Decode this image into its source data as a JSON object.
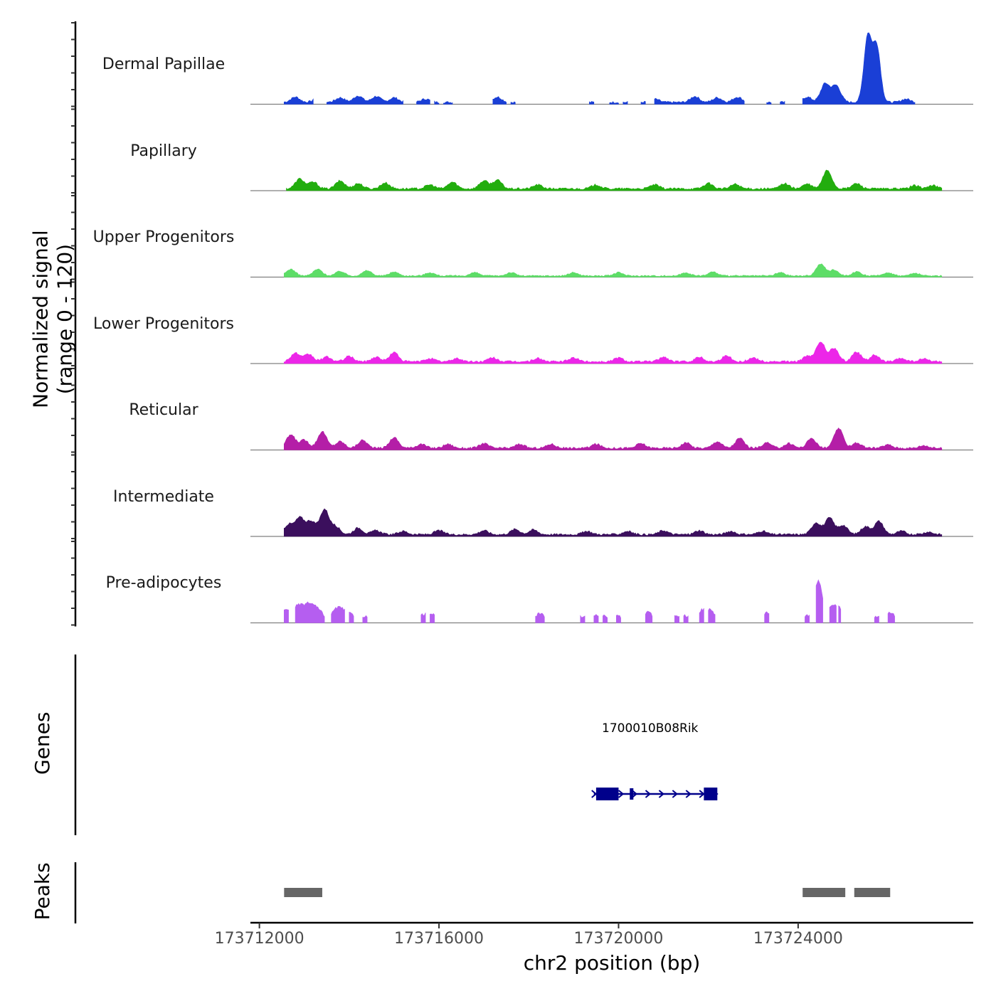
{
  "chart_data": {
    "type": "area",
    "title": "",
    "xlabel": "chr2 position (bp)",
    "ylabel_line1": "Normalized signal",
    "ylabel_line2": "(range 0 - 120)",
    "genes_label": "Genes",
    "peaks_label": "Peaks",
    "xlim": [
      173711800,
      173727900
    ],
    "ylim": [
      0,
      120
    ],
    "x_ticks": [
      {
        "value": 173712000,
        "label": "173712000"
      },
      {
        "value": 173716000,
        "label": "173716000"
      },
      {
        "value": 173720000,
        "label": "173720000"
      },
      {
        "value": 173724000,
        "label": "173724000"
      }
    ],
    "tracks": [
      {
        "name": "Dermal Papillae",
        "color": "#1a3fd6",
        "segments": [
          [
            173712550,
            173713200
          ],
          [
            173713500,
            173715200
          ],
          [
            173715500,
            173715800
          ],
          [
            173715900,
            173716000
          ],
          [
            173716100,
            173716300
          ],
          [
            173717200,
            173717500
          ],
          [
            173717600,
            173717700
          ],
          [
            173719350,
            173719450
          ],
          [
            173719800,
            173720000
          ],
          [
            173720100,
            173720200
          ],
          [
            173720500,
            173720600
          ],
          [
            173720800,
            173722800
          ],
          [
            173723300,
            173723400
          ],
          [
            173723600,
            173723700
          ],
          [
            173724100,
            173724400
          ],
          [
            173724400,
            173726600
          ]
        ],
        "peaks": [
          [
            173712800,
            8
          ],
          [
            173713300,
            6
          ],
          [
            173713800,
            7
          ],
          [
            173714200,
            10
          ],
          [
            173714600,
            9
          ],
          [
            173715000,
            7
          ],
          [
            173715700,
            5
          ],
          [
            173717300,
            8
          ],
          [
            173720800,
            5
          ],
          [
            173721700,
            9
          ],
          [
            173722200,
            7
          ],
          [
            173722650,
            8
          ],
          [
            173724200,
            8
          ],
          [
            173724600,
            28
          ],
          [
            173724850,
            25
          ],
          [
            173725550,
            100
          ],
          [
            173725750,
            85
          ],
          [
            173726400,
            5
          ]
        ],
        "base": 3
      },
      {
        "name": "Papillary",
        "color": "#22ad0e",
        "segments": [
          [
            173712600,
            173727200
          ]
        ],
        "peaks": [
          [
            173712900,
            15
          ],
          [
            173713200,
            10
          ],
          [
            173713800,
            12
          ],
          [
            173714200,
            8
          ],
          [
            173714800,
            9
          ],
          [
            173715800,
            6
          ],
          [
            173716300,
            10
          ],
          [
            173717000,
            12
          ],
          [
            173717300,
            13
          ],
          [
            173718200,
            6
          ],
          [
            173719500,
            6
          ],
          [
            173720800,
            6
          ],
          [
            173722000,
            8
          ],
          [
            173722600,
            7
          ],
          [
            173723700,
            8
          ],
          [
            173724200,
            7
          ],
          [
            173724650,
            28
          ],
          [
            173725300,
            8
          ],
          [
            173726600,
            5
          ],
          [
            173727000,
            5
          ]
        ],
        "base": 3
      },
      {
        "name": "Upper Progenitors",
        "color": "#5ddd67",
        "segments": [
          [
            173712550,
            173727200
          ]
        ],
        "peaks": [
          [
            173712700,
            10
          ],
          [
            173713300,
            10
          ],
          [
            173713800,
            7
          ],
          [
            173714400,
            8
          ],
          [
            173715000,
            6
          ],
          [
            173715800,
            5
          ],
          [
            173716800,
            5
          ],
          [
            173717600,
            5
          ],
          [
            173719000,
            5
          ],
          [
            173720000,
            5
          ],
          [
            173721500,
            5
          ],
          [
            173722100,
            6
          ],
          [
            173723600,
            5
          ],
          [
            173724500,
            18
          ],
          [
            173724800,
            9
          ],
          [
            173725300,
            6
          ],
          [
            173726000,
            5
          ],
          [
            173726600,
            4
          ]
        ],
        "base": 2
      },
      {
        "name": "Lower Progenitors",
        "color": "#ec26e8",
        "segments": [
          [
            173712550,
            173727200
          ]
        ],
        "peaks": [
          [
            173712800,
            13
          ],
          [
            173713100,
            11
          ],
          [
            173713500,
            7
          ],
          [
            173714000,
            8
          ],
          [
            173714600,
            7
          ],
          [
            173715000,
            14
          ],
          [
            173715800,
            5
          ],
          [
            173716400,
            5
          ],
          [
            173717200,
            6
          ],
          [
            173718200,
            5
          ],
          [
            173719000,
            6
          ],
          [
            173720000,
            6
          ],
          [
            173721000,
            7
          ],
          [
            173721800,
            7
          ],
          [
            173722400,
            9
          ],
          [
            173723000,
            6
          ],
          [
            173724200,
            8
          ],
          [
            173724500,
            30
          ],
          [
            173724800,
            20
          ],
          [
            173725300,
            15
          ],
          [
            173725700,
            10
          ],
          [
            173726300,
            5
          ],
          [
            173726800,
            4
          ]
        ],
        "base": 3
      },
      {
        "name": "Reticular",
        "color": "#b41ea7",
        "segments": [
          [
            173712550,
            173727200
          ]
        ],
        "peaks": [
          [
            173712700,
            20
          ],
          [
            173713000,
            12
          ],
          [
            173713400,
            25
          ],
          [
            173713800,
            10
          ],
          [
            173714300,
            12
          ],
          [
            173715000,
            16
          ],
          [
            173715600,
            6
          ],
          [
            173716200,
            6
          ],
          [
            173717000,
            7
          ],
          [
            173717800,
            6
          ],
          [
            173718500,
            6
          ],
          [
            173719500,
            6
          ],
          [
            173720500,
            7
          ],
          [
            173721500,
            8
          ],
          [
            173722200,
            10
          ],
          [
            173722700,
            15
          ],
          [
            173723300,
            8
          ],
          [
            173723800,
            7
          ],
          [
            173724300,
            15
          ],
          [
            173724900,
            30
          ],
          [
            173725300,
            8
          ],
          [
            173726000,
            5
          ],
          [
            173726800,
            4
          ]
        ],
        "base": 3
      },
      {
        "name": "Intermediate",
        "color": "#3b0f5d",
        "segments": [
          [
            173712550,
            173727200
          ]
        ],
        "peaks": [
          [
            173712650,
            15
          ],
          [
            173712900,
            25
          ],
          [
            173713150,
            20
          ],
          [
            173713450,
            38
          ],
          [
            173713700,
            12
          ],
          [
            173714200,
            10
          ],
          [
            173714600,
            6
          ],
          [
            173715200,
            5
          ],
          [
            173716000,
            6
          ],
          [
            173717000,
            6
          ],
          [
            173717700,
            8
          ],
          [
            173718100,
            7
          ],
          [
            173719300,
            5
          ],
          [
            173720200,
            5
          ],
          [
            173721000,
            6
          ],
          [
            173721800,
            6
          ],
          [
            173722500,
            5
          ],
          [
            173723200,
            5
          ],
          [
            173724400,
            18
          ],
          [
            173724700,
            25
          ],
          [
            173725000,
            14
          ],
          [
            173725500,
            12
          ],
          [
            173725800,
            20
          ],
          [
            173726300,
            5
          ],
          [
            173726900,
            4
          ]
        ],
        "base": 3
      },
      {
        "name": "Pre-adipocytes",
        "color": "#b55ef0",
        "segments": [
          [
            173712550,
            173712650
          ],
          [
            173712800,
            173713450
          ],
          [
            173713600,
            173713900
          ],
          [
            173714000,
            173714100
          ],
          [
            173714300,
            173714400
          ],
          [
            173715600,
            173715700
          ],
          [
            173715800,
            173715900
          ],
          [
            173718150,
            173718350
          ],
          [
            173719150,
            173719250
          ],
          [
            173719450,
            173719550
          ],
          [
            173719650,
            173719750
          ],
          [
            173719950,
            173720050
          ],
          [
            173720600,
            173720750
          ],
          [
            173721250,
            173721350
          ],
          [
            173721450,
            173721550
          ],
          [
            173721800,
            173721900
          ],
          [
            173722000,
            173722150
          ],
          [
            173723250,
            173723350
          ],
          [
            173724150,
            173724250
          ],
          [
            173724400,
            173724550
          ],
          [
            173724700,
            173724850
          ],
          [
            173724900,
            173724950
          ],
          [
            173725700,
            173725800
          ],
          [
            173726000,
            173726150
          ]
        ],
        "peaks": [
          [
            173712600,
            16
          ],
          [
            173712850,
            20
          ],
          [
            173713050,
            18
          ],
          [
            173713200,
            15
          ],
          [
            173713350,
            10
          ],
          [
            173713700,
            14
          ],
          [
            173713850,
            12
          ],
          [
            173714050,
            8
          ],
          [
            173714350,
            6
          ],
          [
            173715650,
            8
          ],
          [
            173715850,
            8
          ],
          [
            173718250,
            10
          ],
          [
            173719200,
            6
          ],
          [
            173719500,
            6
          ],
          [
            173719700,
            6
          ],
          [
            173720000,
            6
          ],
          [
            173720650,
            12
          ],
          [
            173721300,
            6
          ],
          [
            173721500,
            6
          ],
          [
            173721850,
            14
          ],
          [
            173722050,
            14
          ],
          [
            173723300,
            12
          ],
          [
            173724200,
            6
          ],
          [
            173724450,
            60
          ],
          [
            173724750,
            18
          ],
          [
            173724920,
            16
          ],
          [
            173725750,
            6
          ],
          [
            173726050,
            12
          ]
        ],
        "base": 4
      }
    ],
    "gene": {
      "name": "1700010B08Rik",
      "start": 173719450,
      "end": 173722200,
      "strand": "+",
      "exons": [
        [
          173719500,
          173720000
        ],
        [
          173720250,
          173720330
        ],
        [
          173721900,
          173722200
        ]
      ],
      "color": "#00008b"
    },
    "peaks": [
      {
        "start": 173712550,
        "end": 173713400
      },
      {
        "start": 173724100,
        "end": 173725050
      },
      {
        "start": 173725250,
        "end": 173726050
      }
    ],
    "peak_color": "#666666"
  }
}
